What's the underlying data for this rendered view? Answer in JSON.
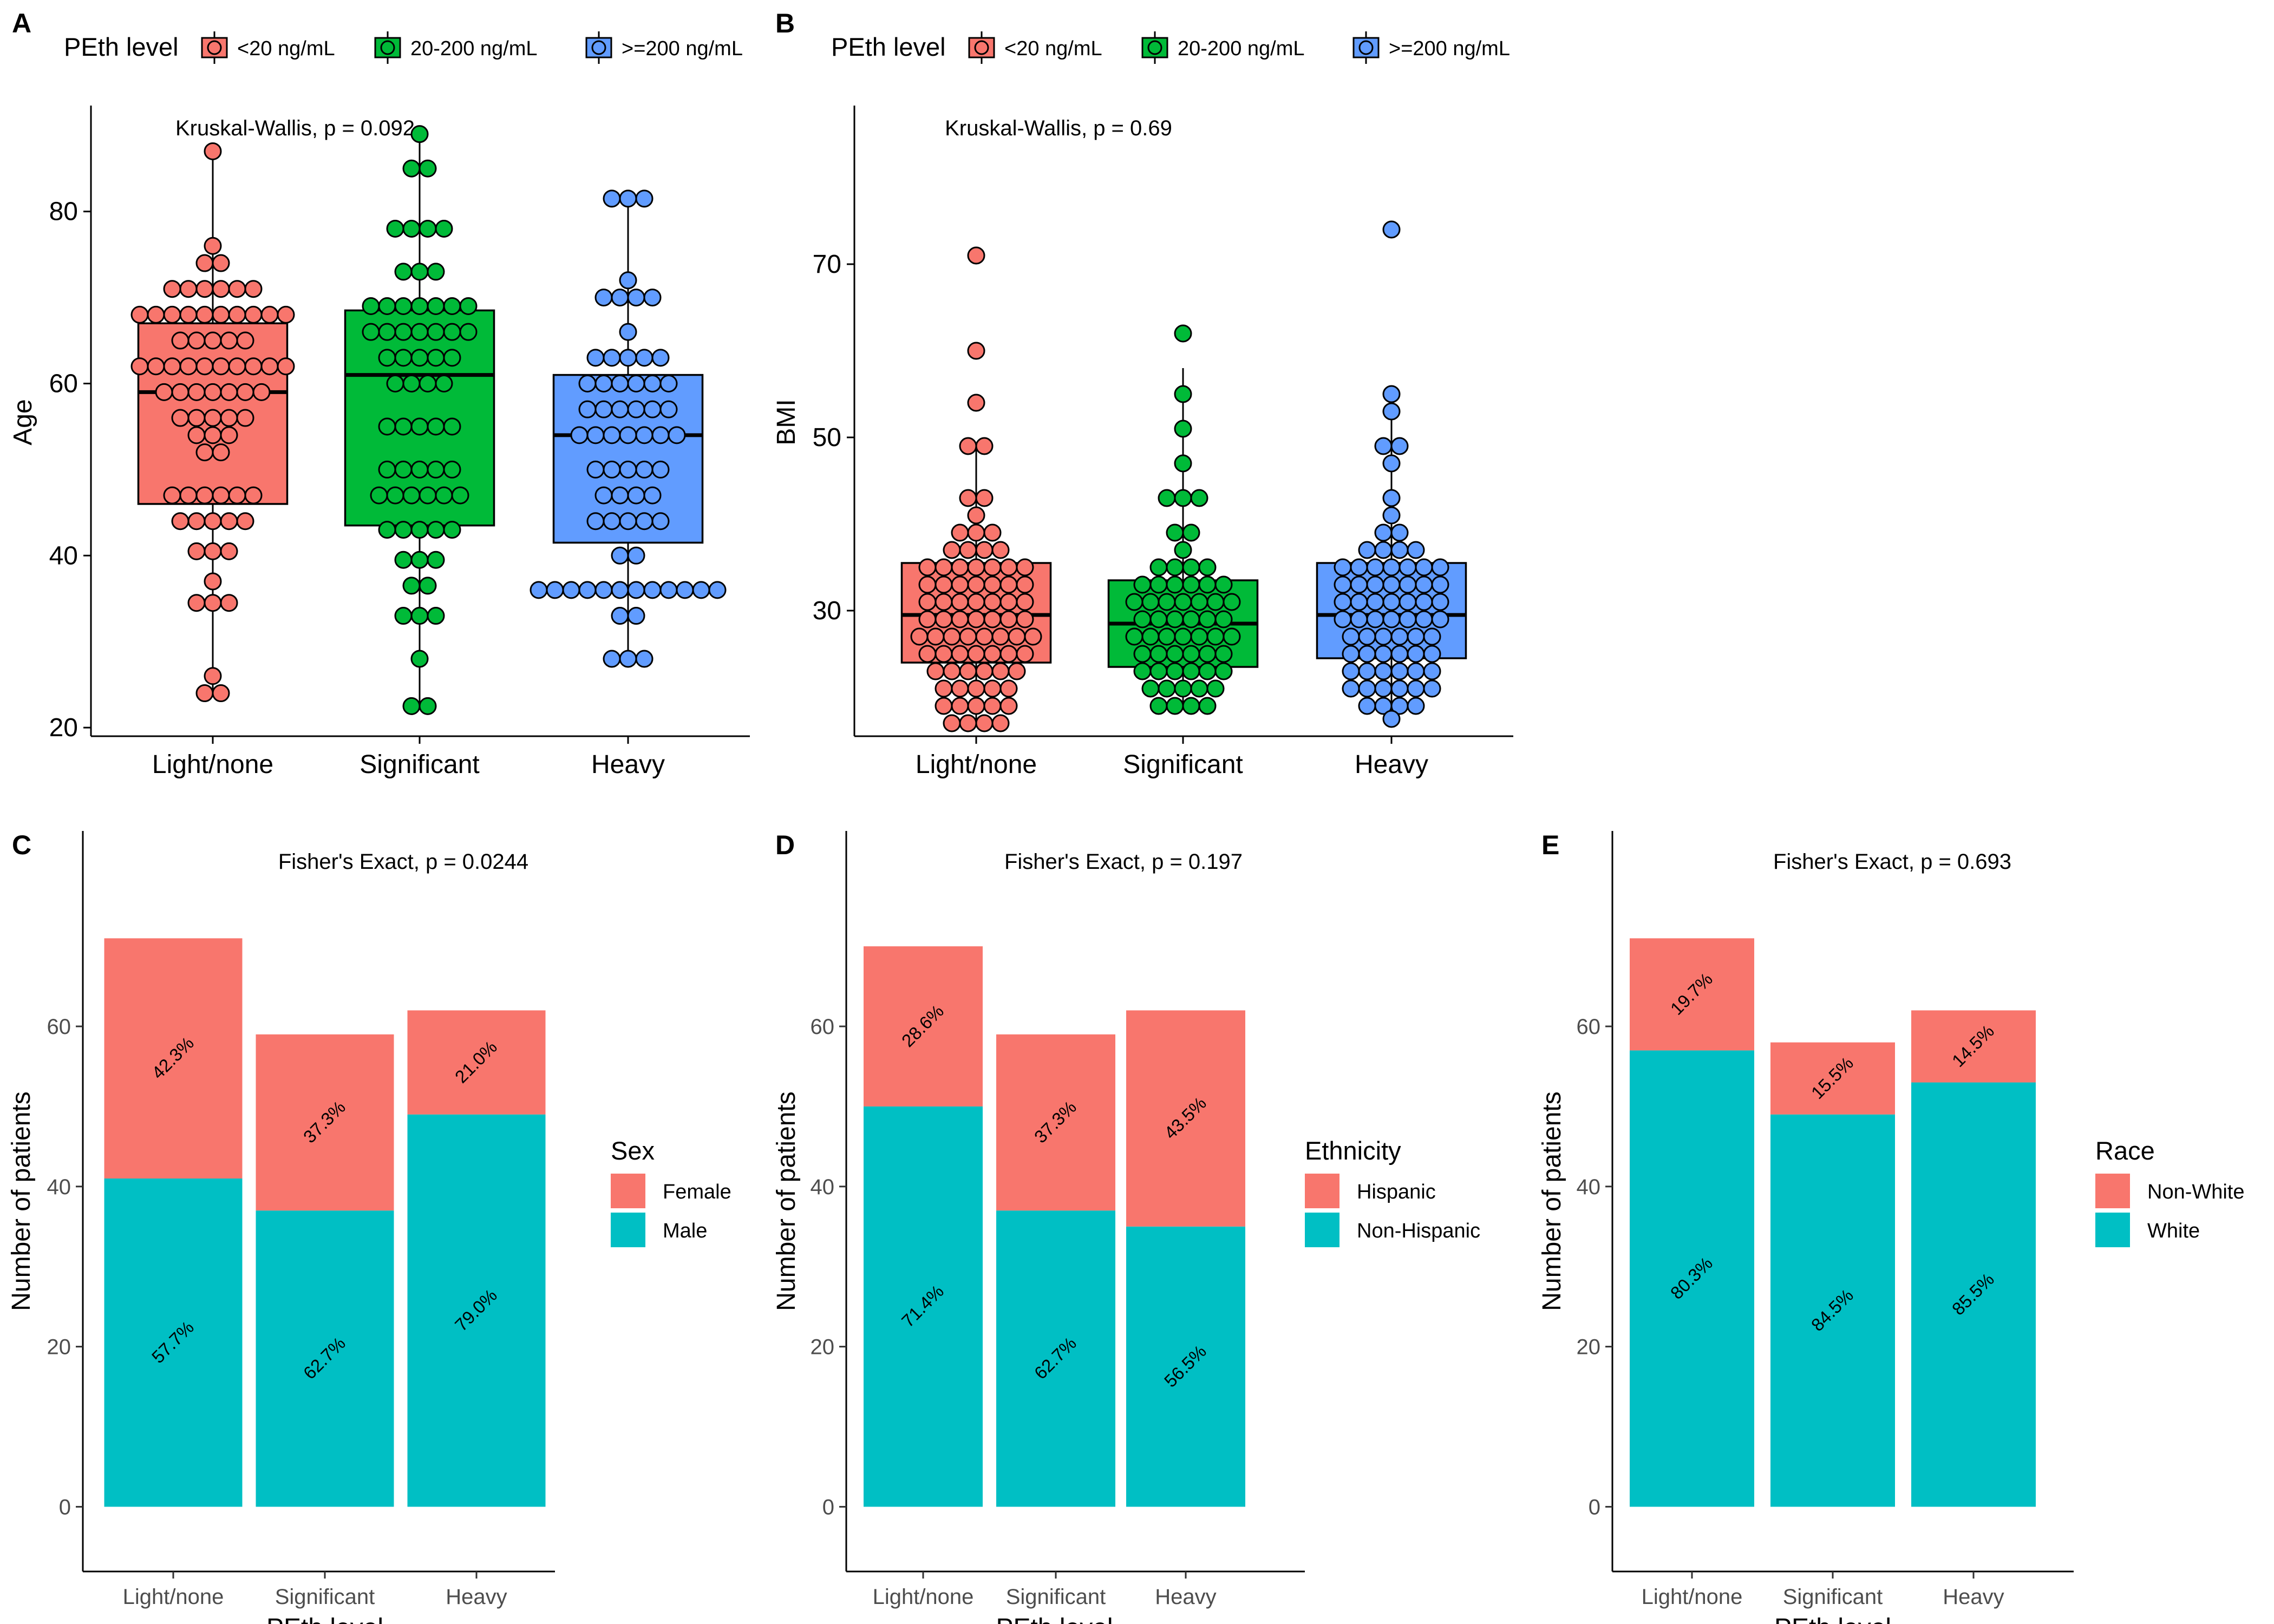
{
  "colors": {
    "light": "#F8766D",
    "sig": "#00BA38",
    "heavy": "#619CFF",
    "female": "#F8766D",
    "male": "#00BFC4"
  },
  "top_legend": {
    "title": "PEth level",
    "items": [
      "<20 ng/mL",
      "20-200 ng/mL",
      ">=200 ng/mL"
    ]
  },
  "chart_data": [
    {
      "panel": "A",
      "type": "box",
      "ylabel": "Age",
      "annotation": "Kruskal-Wallis, p = 0.092",
      "categories": [
        "Light/none",
        "Significant",
        "Heavy"
      ],
      "yticks": [
        20,
        40,
        60,
        80
      ],
      "ylim": [
        19,
        92
      ],
      "boxes": [
        {
          "min": 24,
          "q1": 46,
          "median": 59,
          "q3": 67,
          "max": 87
        },
        {
          "min": 22.5,
          "q1": 43.5,
          "median": 61,
          "q3": 68.5,
          "max": 89
        },
        {
          "min": 28,
          "q1": 41.5,
          "median": 54,
          "q3": 61,
          "max": 81.5
        }
      ],
      "points": [
        [
          87,
          76,
          74,
          74,
          71,
          71,
          71,
          71,
          71,
          71,
          68,
          68,
          68,
          68,
          68,
          68,
          68,
          68,
          68,
          68,
          65,
          65,
          65,
          65,
          65,
          62,
          62,
          62,
          62,
          62,
          62,
          62,
          62,
          62,
          62,
          59,
          59,
          59,
          59,
          59,
          59,
          59,
          56,
          56,
          56,
          56,
          56,
          54,
          54,
          54,
          52,
          52,
          47,
          47,
          47,
          47,
          47,
          47,
          44,
          44,
          44,
          44,
          44,
          40.5,
          40.5,
          40.5,
          37,
          34.5,
          34.5,
          34.5,
          26,
          24,
          24
        ],
        [
          89,
          85,
          85,
          78,
          78,
          78,
          78,
          73,
          73,
          73,
          69,
          69,
          69,
          69,
          69,
          69,
          69,
          66,
          66,
          66,
          66,
          66,
          66,
          66,
          63,
          63,
          63,
          63,
          63,
          60,
          60,
          60,
          60,
          55,
          55,
          55,
          55,
          55,
          50,
          50,
          50,
          50,
          50,
          47,
          47,
          47,
          47,
          47,
          47,
          43,
          43,
          43,
          43,
          43,
          39.5,
          39.5,
          39.5,
          36.5,
          36.5,
          33,
          33,
          33,
          28,
          22.5,
          22.5
        ],
        [
          81.5,
          81.5,
          81.5,
          72,
          70,
          70,
          70,
          70,
          66,
          63,
          63,
          63,
          63,
          63,
          60,
          60,
          60,
          60,
          60,
          60,
          57,
          57,
          57,
          57,
          57,
          57,
          54,
          54,
          54,
          54,
          54,
          54,
          54,
          50,
          50,
          50,
          50,
          50,
          47,
          47,
          47,
          47,
          44,
          44,
          44,
          44,
          44,
          40,
          40,
          36,
          36,
          36,
          36,
          36,
          36,
          36,
          36,
          36,
          36,
          36,
          36,
          33,
          33,
          28,
          28,
          28
        ]
      ]
    },
    {
      "panel": "B",
      "type": "box",
      "ylabel": "BMI",
      "annotation": "Kruskal-Wallis, p = 0.69",
      "categories": [
        "Light/none",
        "Significant",
        "Heavy"
      ],
      "yticks": [
        30,
        50,
        70
      ],
      "ylim": [
        15.5,
        88
      ],
      "boxes": [
        {
          "min": 17,
          "q1": 24,
          "median": 29.5,
          "q3": 35.5,
          "max": 49
        },
        {
          "min": 19,
          "q1": 23.5,
          "median": 28.5,
          "q3": 33.5,
          "max": 58
        },
        {
          "min": 17.5,
          "q1": 24.5,
          "median": 29.5,
          "q3": 35.5,
          "max": 55
        }
      ],
      "points": [
        [
          71,
          60,
          54,
          49,
          49,
          43,
          43,
          41,
          39,
          39,
          39,
          37,
          37,
          37,
          37,
          35,
          35,
          35,
          35,
          35,
          35,
          35,
          33,
          33,
          33,
          33,
          33,
          33,
          33,
          31,
          31,
          31,
          31,
          31,
          31,
          31,
          29,
          29,
          29,
          29,
          29,
          29,
          29,
          27,
          27,
          27,
          27,
          27,
          27,
          27,
          27,
          25,
          25,
          25,
          25,
          25,
          25,
          25,
          23,
          23,
          23,
          23,
          23,
          23,
          21,
          21,
          21,
          21,
          21,
          19,
          19,
          19,
          19,
          19,
          17,
          17,
          17,
          17
        ],
        [
          62,
          55,
          51,
          47,
          43,
          43,
          43,
          39,
          39,
          37,
          35,
          35,
          35,
          35,
          33,
          33,
          33,
          33,
          33,
          33,
          31,
          31,
          31,
          31,
          31,
          31,
          31,
          29,
          29,
          29,
          29,
          29,
          29,
          27,
          27,
          27,
          27,
          27,
          27,
          27,
          25,
          25,
          25,
          25,
          25,
          25,
          23,
          23,
          23,
          23,
          23,
          23,
          21,
          21,
          21,
          21,
          21,
          19,
          19,
          19,
          19
        ],
        [
          74,
          55,
          53,
          49,
          49,
          47,
          43,
          41,
          39,
          39,
          37,
          37,
          37,
          37,
          35,
          35,
          35,
          35,
          35,
          35,
          35,
          33,
          33,
          33,
          33,
          33,
          33,
          33,
          31,
          31,
          31,
          31,
          31,
          31,
          31,
          29,
          29,
          29,
          29,
          29,
          29,
          29,
          27,
          27,
          27,
          27,
          27,
          27,
          25,
          25,
          25,
          25,
          25,
          25,
          23,
          23,
          23,
          23,
          23,
          23,
          21,
          21,
          21,
          21,
          21,
          21,
          19,
          19,
          19,
          19,
          17.5
        ]
      ]
    },
    {
      "panel": "C",
      "type": "bar",
      "stacked": true,
      "annotation": "Fisher's Exact, p = 0.0244",
      "xlabel": "PEth level",
      "ylabel": "Number of patients",
      "categories": [
        "Light/none",
        "Significant",
        "Heavy"
      ],
      "yticks": [
        0,
        20,
        40,
        60
      ],
      "ylim": [
        -4.5,
        79
      ],
      "legend_title": "Sex",
      "series": [
        {
          "name": "Female",
          "values": [
            30,
            22,
            13
          ],
          "labels": [
            "42.3%",
            "37.3%",
            "21.0%"
          ]
        },
        {
          "name": "Male",
          "values": [
            41,
            37,
            49
          ],
          "labels": [
            "57.7%",
            "62.7%",
            "79.0%"
          ]
        }
      ]
    },
    {
      "panel": "D",
      "type": "bar",
      "stacked": true,
      "annotation": "Fisher's Exact, p = 0.197",
      "xlabel": "PEth level",
      "ylabel": "Number of patients",
      "categories": [
        "Light/none",
        "Significant",
        "Heavy"
      ],
      "yticks": [
        0,
        20,
        40,
        60
      ],
      "ylim": [
        -4.5,
        79
      ],
      "legend_title": "Ethnicity",
      "series": [
        {
          "name": "Hispanic",
          "values": [
            20,
            22,
            27
          ],
          "labels": [
            "28.6%",
            "37.3%",
            "43.5%"
          ]
        },
        {
          "name": "Non-Hispanic",
          "values": [
            50,
            37,
            35
          ],
          "labels": [
            "71.4%",
            "62.7%",
            "56.5%"
          ]
        }
      ]
    },
    {
      "panel": "E",
      "type": "bar",
      "stacked": true,
      "annotation": "Fisher's Exact, p = 0.693",
      "xlabel": "PEth level",
      "ylabel": "Number of patients",
      "categories": [
        "Light/none",
        "Significant",
        "Heavy"
      ],
      "yticks": [
        0,
        20,
        40,
        60
      ],
      "ylim": [
        -4.5,
        79
      ],
      "legend_title": "Race",
      "series": [
        {
          "name": "Non-White",
          "values": [
            14,
            9,
            9
          ],
          "labels": [
            "19.7%",
            "15.5%",
            "14.5%"
          ]
        },
        {
          "name": "White",
          "values": [
            57,
            49,
            53
          ],
          "labels": [
            "80.3%",
            "84.5%",
            "85.5%"
          ]
        }
      ]
    }
  ]
}
